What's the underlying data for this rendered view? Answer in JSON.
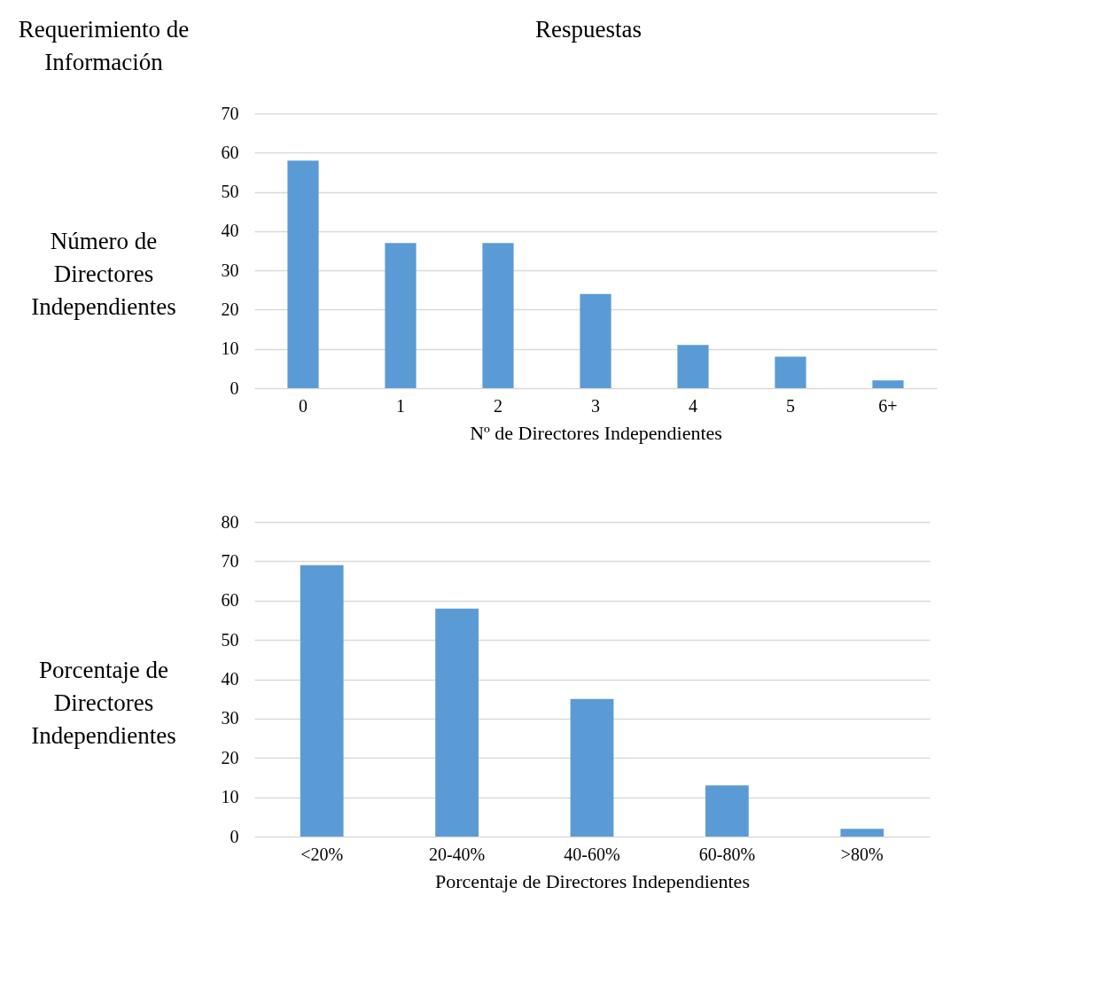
{
  "chart_data": [
    {
      "type": "bar",
      "title": "Número de Directores Independientes",
      "annotations": [
        "Requerimiento de Información",
        "Respuestas"
      ],
      "xlabel": "Nº de Directores Independientes",
      "categories": [
        "0",
        "1",
        "2",
        "3",
        "4",
        "5",
        "6+"
      ],
      "values": [
        58,
        37,
        37,
        24,
        11,
        8,
        2
      ],
      "color": "#5b9bd5",
      "ylim": [
        0,
        70
      ],
      "yticks": [
        0,
        10,
        20,
        30,
        40,
        50,
        60,
        70
      ],
      "grid": "y"
    },
    {
      "type": "bar",
      "title": "Porcentaje de Directores Independientes",
      "xlabel": "Porcentaje de Directores Independientes",
      "categories": [
        "<20%",
        "20-40%",
        "40-60%",
        "60-80%",
        ">80%"
      ],
      "values": [
        69,
        58,
        35,
        13,
        2
      ],
      "color": "#5b9bd5",
      "ylim": [
        0,
        80
      ],
      "yticks": [
        0,
        10,
        20,
        30,
        40,
        50,
        60,
        70,
        80
      ],
      "grid": "y"
    }
  ]
}
